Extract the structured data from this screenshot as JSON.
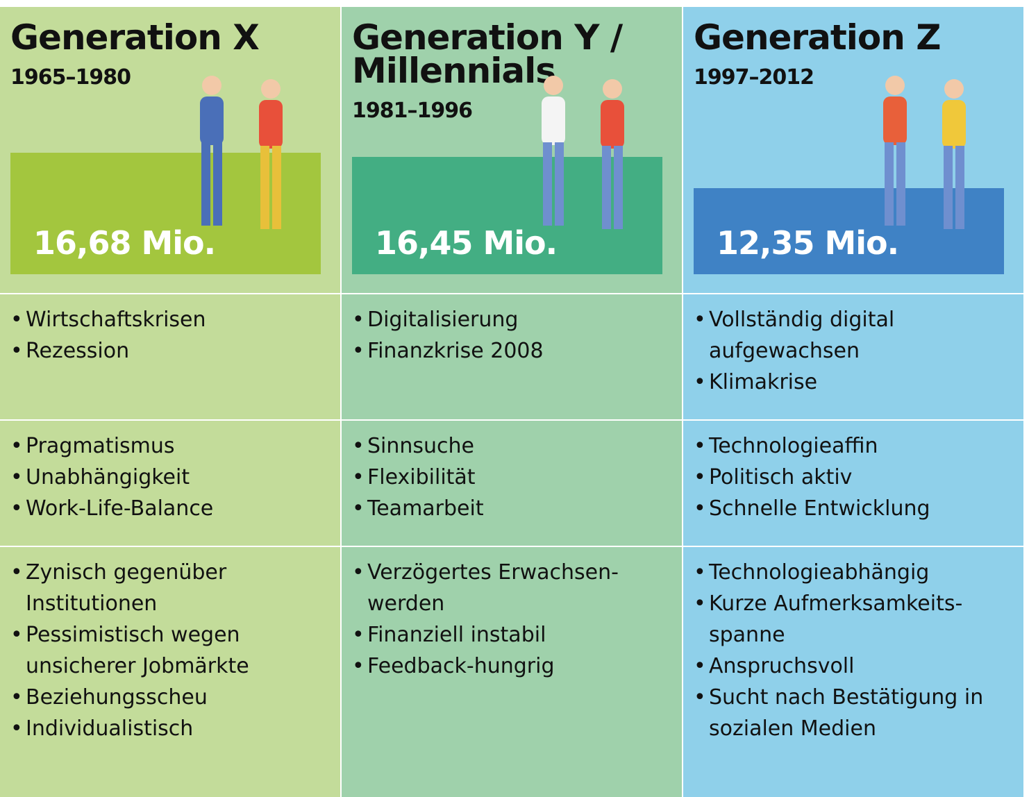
{
  "columns": [
    {
      "title": "Generation X",
      "years": "1965–1980",
      "population": "16,68 Mio.",
      "rows": [
        [
          "Wirtschaftskrisen",
          "Rezession"
        ],
        [
          "Pragmatismus",
          "Unabhängigkeit",
          "Work-Life-Balance"
        ],
        [
          "Zynisch gegenüber Institutionen",
          "Pessimistisch wegen unsicherer Jobmärkte",
          "Beziehungsscheu",
          "Individualistisch"
        ]
      ]
    },
    {
      "title": "Generation Y / Millennials",
      "years": "1981–1996",
      "population": "16,45 Mio.",
      "rows": [
        [
          "Digitalisierung",
          "Finanzkrise 2008"
        ],
        [
          "Sinnsuche",
          "Flexibilität",
          "Teamarbeit"
        ],
        [
          "Verzögertes Erwachsen-werden",
          "Finanziell instabil",
          "Feedback-hungrig"
        ]
      ]
    },
    {
      "title": "Generation Z",
      "years": "1997–2012",
      "population": "12,35 Mio.",
      "rows": [
        [
          "Vollständig digital aufgewachsen",
          "Klimakrise"
        ],
        [
          "Technologieaffin",
          "Politisch aktiv",
          "Schnelle Entwicklung"
        ],
        [
          "Technologieabhängig",
          "Kurze Aufmerksamkeits-spanne",
          "Anspruchsvoll",
          "Sucht nach Bestätigung in sozialen Medien"
        ]
      ]
    }
  ]
}
